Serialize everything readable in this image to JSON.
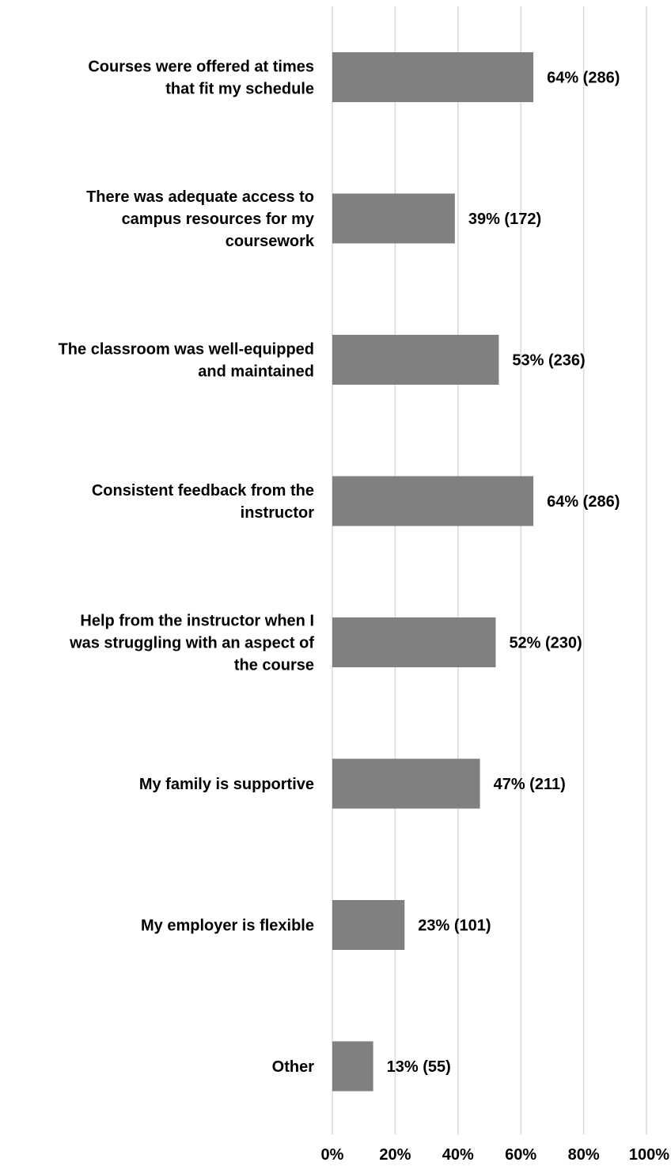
{
  "chart_data": {
    "type": "bar",
    "orientation": "horizontal",
    "title": "",
    "xlabel": "",
    "ylabel": "",
    "categories": [
      [
        "Courses were offered at times",
        "that fit my schedule"
      ],
      [
        "There was adequate access to",
        "campus resources for my",
        "coursework"
      ],
      [
        "The classroom was well-equipped",
        "and maintained"
      ],
      [
        "Consistent feedback from the",
        "instructor"
      ],
      [
        "Help from the instructor when I",
        "was struggling with an aspect of",
        "the course"
      ],
      [
        "My family is supportive"
      ],
      [
        "My employer is flexible"
      ],
      [
        "Other"
      ]
    ],
    "values": [
      0.64,
      0.39,
      0.53,
      0.64,
      0.52,
      0.47,
      0.23,
      0.13
    ],
    "data_labels": [
      "64% (286)",
      "39% (172)",
      "53% (236)",
      "64% (286)",
      "52% (230)",
      "47% (211)",
      "23% (101)",
      "13% (55)"
    ],
    "xlim": [
      0,
      1
    ],
    "x_ticks": [
      0,
      0.2,
      0.4,
      0.6,
      0.8,
      1.0
    ],
    "x_tick_labels": [
      "0%",
      "20%",
      "40%",
      "60%",
      "80%",
      "100%"
    ],
    "grid": "vertical",
    "legend": "none",
    "bar_color": "#808080",
    "grid_color": "#d9d9d9"
  }
}
